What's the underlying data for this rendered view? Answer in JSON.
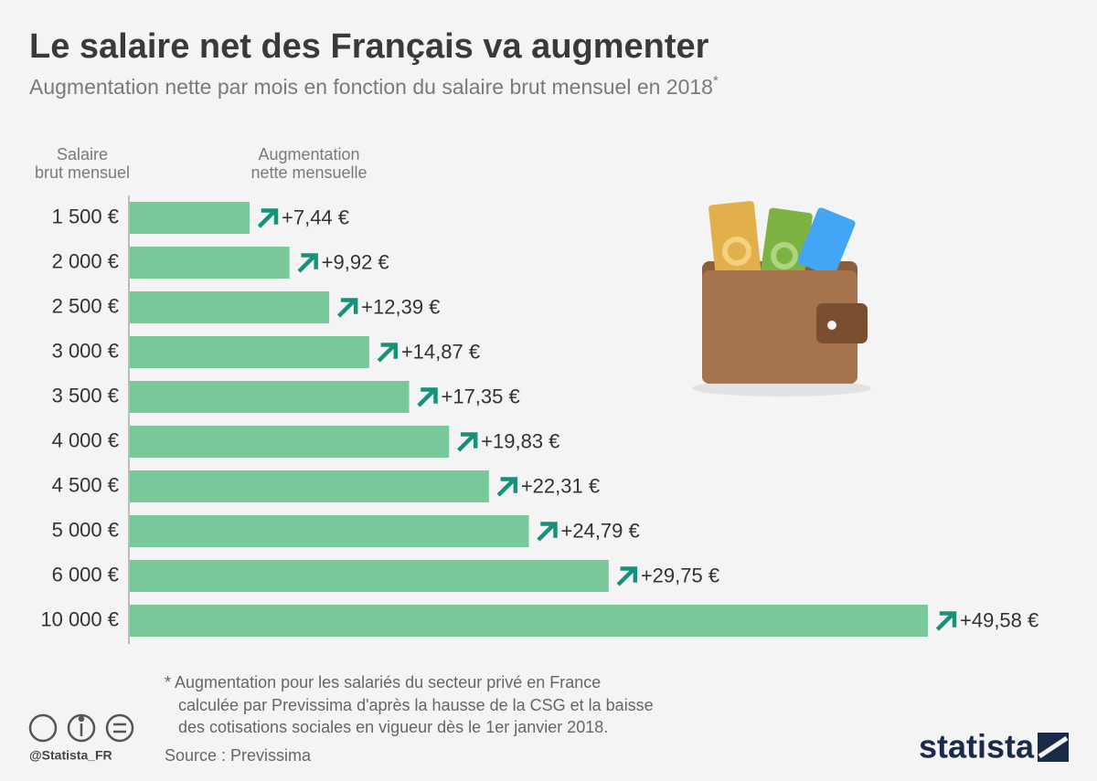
{
  "chart_data": {
    "type": "bar",
    "orientation": "horizontal",
    "title": "Le salaire net des Français va augmenter",
    "subtitle": "Augmentation nette par mois en fonction du salaire brut mensuel en 2018",
    "subtitle_mark": "*",
    "category_header": [
      "Salaire",
      "brut mensuel"
    ],
    "value_header": [
      "Augmentation",
      "nette mensuelle"
    ],
    "categories": [
      "1 500 €",
      "2 000 €",
      "2 500 €",
      "3 000 €",
      "3 500 €",
      "4 000 €",
      "4 500 €",
      "5 000 €",
      "6 000 €",
      "10 000 €"
    ],
    "values": [
      7.44,
      9.92,
      12.39,
      14.87,
      17.35,
      19.83,
      22.31,
      24.79,
      29.75,
      49.58
    ],
    "value_labels": [
      "+7,44 €",
      "+9,92 €",
      "+12,39 €",
      "+14,87 €",
      "+17,35 €",
      "+19,83 €",
      "+22,31 €",
      "+24,79 €",
      "+29,75 €",
      "+49,58 €"
    ],
    "color": "#79c89a",
    "arrow_color": "#17917a",
    "footnote": [
      "* Augmentation pour les salariés du secteur privé en France",
      "calculée par Previssima d'après la hausse de la CSG et la baisse",
      "des cotisations sociales en vigueur dès le 1er janvier 2018."
    ],
    "source": "Source : Previssima",
    "handle": "@Statista_FR",
    "brand": "statista"
  }
}
